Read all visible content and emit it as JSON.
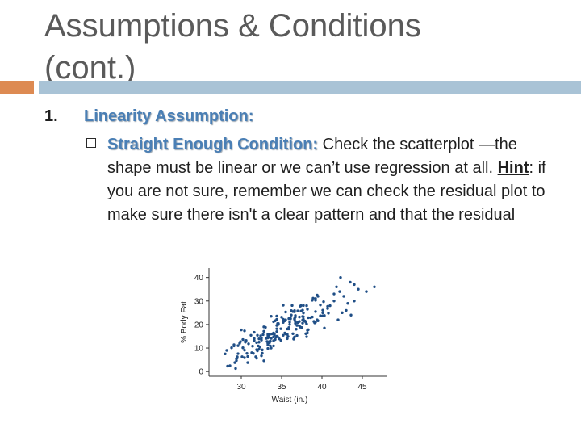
{
  "slide": {
    "title_line1": "Assumptions & Conditions",
    "title_line2": "(cont.)",
    "number": "1.",
    "heading": "Linearity Assumption:",
    "condition_label": "Straight Enough Condition:",
    "text_part1": " Check the scatterplot —the shape must be linear or we can’t use regression at all. ",
    "hint_label": "Hint",
    "text_part2": ": if you are not sure, remember we can check the residual plot to make sure there isn't a clear pattern and that the residual",
    "colors": {
      "title": "#5a5a5a",
      "accent_orange": "#dd8a52",
      "accent_blue": "#a9c3d6",
      "heading_blue": "#4a7fb5",
      "point_blue": "#1f4e86"
    }
  },
  "chart_data": {
    "type": "scatter",
    "xlabel": "Waist (in.)",
    "ylabel": "% Body Fat",
    "xlim": [
      26,
      48
    ],
    "ylim": [
      -2,
      44
    ],
    "xticks": [
      30,
      35,
      40,
      45
    ],
    "yticks": [
      0,
      10,
      20,
      30,
      40
    ],
    "grid": false,
    "x": [
      30.1,
      29.3,
      32.2,
      39.5,
      30.5,
      35.9,
      33.3,
      36.4,
      36.6,
      32.8,
      33.8,
      34.4,
      38.8,
      33.3,
      35.3,
      33.5,
      38.1,
      38.1,
      34.4,
      34.0,
      35.7,
      29.4,
      34.5,
      40.3,
      30.4,
      31.6,
      30.2,
      32.5,
      37.9,
      37.7,
      37.7,
      36.1,
      38.0,
      39.2,
      34.1,
      33.7,
      35.2,
      31.6,
      29.6,
      30.7,
      37.3,
      36.3,
      32.5,
      36.6,
      31.4,
      34.2,
      35.2,
      32.6,
      36.5,
      38.6,
      32.8,
      32.6,
      33.3,
      40.7,
      37.4,
      37.0,
      34.0,
      37.0,
      37.6,
      34.4,
      33.3,
      28.3,
      35.0,
      40.3,
      39.4,
      36.6,
      32.0,
      37.4,
      30.5,
      39.1,
      35.4,
      37.6,
      33.0,
      33.2,
      37.7,
      39.4,
      30.6,
      39.5,
      34.6,
      37.6,
      35.7,
      36.7,
      34.2,
      31.2,
      29.5,
      34.4,
      35.2,
      33.5,
      33.3,
      35.4,
      33.1,
      36.1,
      28.6,
      37.8,
      32.7,
      38.3,
      36.2,
      33.6,
      34.0,
      39.8,
      38.8,
      36.7,
      34.9,
      40.1,
      35.9,
      34.0,
      29.9,
      32.3,
      34.0,
      33.4,
      40.1,
      35.2,
      35.5,
      40.7,
      34.7,
      35.5,
      35.8,
      34.6,
      32.5,
      36.5,
      32.4,
      31.9,
      39.2,
      39.2,
      30.9,
      39.2,
      34.4,
      34.9,
      28.0,
      35.7,
      32.8,
      31.9,
      31.9,
      40.1,
      28.8,
      38.3,
      38.2,
      36.0,
      36.7,
      34.5,
      36.7,
      40.2,
      31.6,
      32.0,
      33.3,
      33.7,
      35.9,
      38.2,
      34.3,
      34.0,
      37.2,
      29.2,
      37.2,
      31.5,
      36.0,
      37.6,
      30.8,
      29.6,
      38.0,
      36.9,
      38.1,
      33.3,
      37.7,
      38.9,
      30.0,
      39.0,
      37.3,
      30.4,
      39.8,
      31.3,
      36.2,
      31.8,
      33.6,
      30.4,
      34.4,
      33.7,
      40.8,
      36.4,
      37.2,
      38.2,
      36.6,
      36.9,
      33.5,
      37.5,
      34.1,
      36.6,
      36.8,
      32.2,
      29.1,
      35.5,
      29.4,
      33.3,
      32.1,
      32.2,
      30.8,
      30.2,
      29.1,
      29.5,
      28.2,
      29.8,
      42.0,
      41.5,
      42.5,
      43.5,
      41.0,
      42.2,
      43.0,
      44.0,
      41.8,
      42.7,
      43.6,
      44.5,
      42.3,
      43.2,
      41.5,
      44.0,
      45.5,
      46.5
    ],
    "y": [
      6.3,
      1.3,
      9.5,
      21.6,
      12.9,
      18.1,
      14.3,
      16.1,
      25.4,
      4.6,
      16.0,
      22.2,
      23.2,
      15.5,
      21.6,
      12.8,
      14.8,
      28.0,
      18.2,
      14.7,
      18.1,
      4.7,
      14.8,
      18.5,
      5.9,
      14.0,
      13.6,
      14.2,
      21.5,
      22.2,
      23.3,
      22.6,
      21.0,
      30.3,
      15.6,
      14.1,
      15.4,
      16.7,
      11.0,
      7.7,
      18.9,
      28.1,
      6.7,
      25.9,
      10.8,
      21.6,
      28.2,
      9.2,
      13.9,
      22.9,
      19.0,
      7.8,
      15.0,
      26.8,
      25.7,
      20.8,
      13.1,
      25.8,
      23.4,
      19.6,
      12.1,
      2.3,
      23.1,
      23.8,
      22.0,
      22.2,
      15.4,
      28.0,
      12.5,
      20.7,
      16.4,
      26.1,
      18.8,
      12.8,
      24.9,
      32.5,
      13.2,
      32.0,
      20.4,
      21.9,
      15.8,
      23.8,
      13.6,
      15.4,
      6.3,
      23.6,
      20.9,
      15.7,
      11.9,
      21.6,
      14.1,
      22.4,
      2.5,
      21.5,
      15.7,
      17.8,
      24.0,
      10.9,
      16.3,
      23.7,
      30.3,
      20.5,
      13.3,
      26.1,
      18.7,
      16.4,
      12.7,
      10.5,
      10.9,
      14.6,
      25.0,
      22.2,
      22.0,
      27.7,
      13.9,
      16.0,
      14.9,
      20.0,
      13.4,
      13.8,
      15.2,
      12.3,
      21.0,
      31.0,
      11.8,
      25.5,
      17.0,
      18.2,
      7.5,
      14.0,
      17.1,
      5.7,
      9.3,
      23.7,
      10.1,
      22.9,
      17.5,
      21.0,
      21.3,
      20.4,
      23.2,
      29.7,
      13.2,
      8.8,
      15.9,
      23.5,
      22.5,
      26.5,
      14.6,
      21.2,
      23.2,
      3.8,
      21.3,
      7.7,
      20.0,
      20.6,
      3.8,
      7.6,
      16.1,
      19.6,
      20.2,
      11.3,
      28.1,
      31.2,
      17.7,
      21.3,
      27.8,
      17.3,
      28.3,
      8.0,
      25.9,
      6.3,
      12.9,
      9.1,
      15.0,
      10.0,
      24.8,
      25.5,
      19.4,
      16.4,
      22.5,
      15.3,
      12.3,
      18.7,
      16.0,
      14.7,
      18.0,
      12.5,
      11.4,
      25.3,
      5.5,
      9.8,
      10.9,
      13.9,
      6.4,
      10.1,
      10.9,
      5.8,
      9.0,
      12.0,
      22.0,
      30.0,
      25.0,
      38.0,
      28.0,
      34.0,
      26.0,
      30.0,
      36.0,
      32.0,
      24.0,
      35.0,
      40.0,
      29.0,
      33.0,
      37.0,
      34.0,
      36.0
    ]
  }
}
